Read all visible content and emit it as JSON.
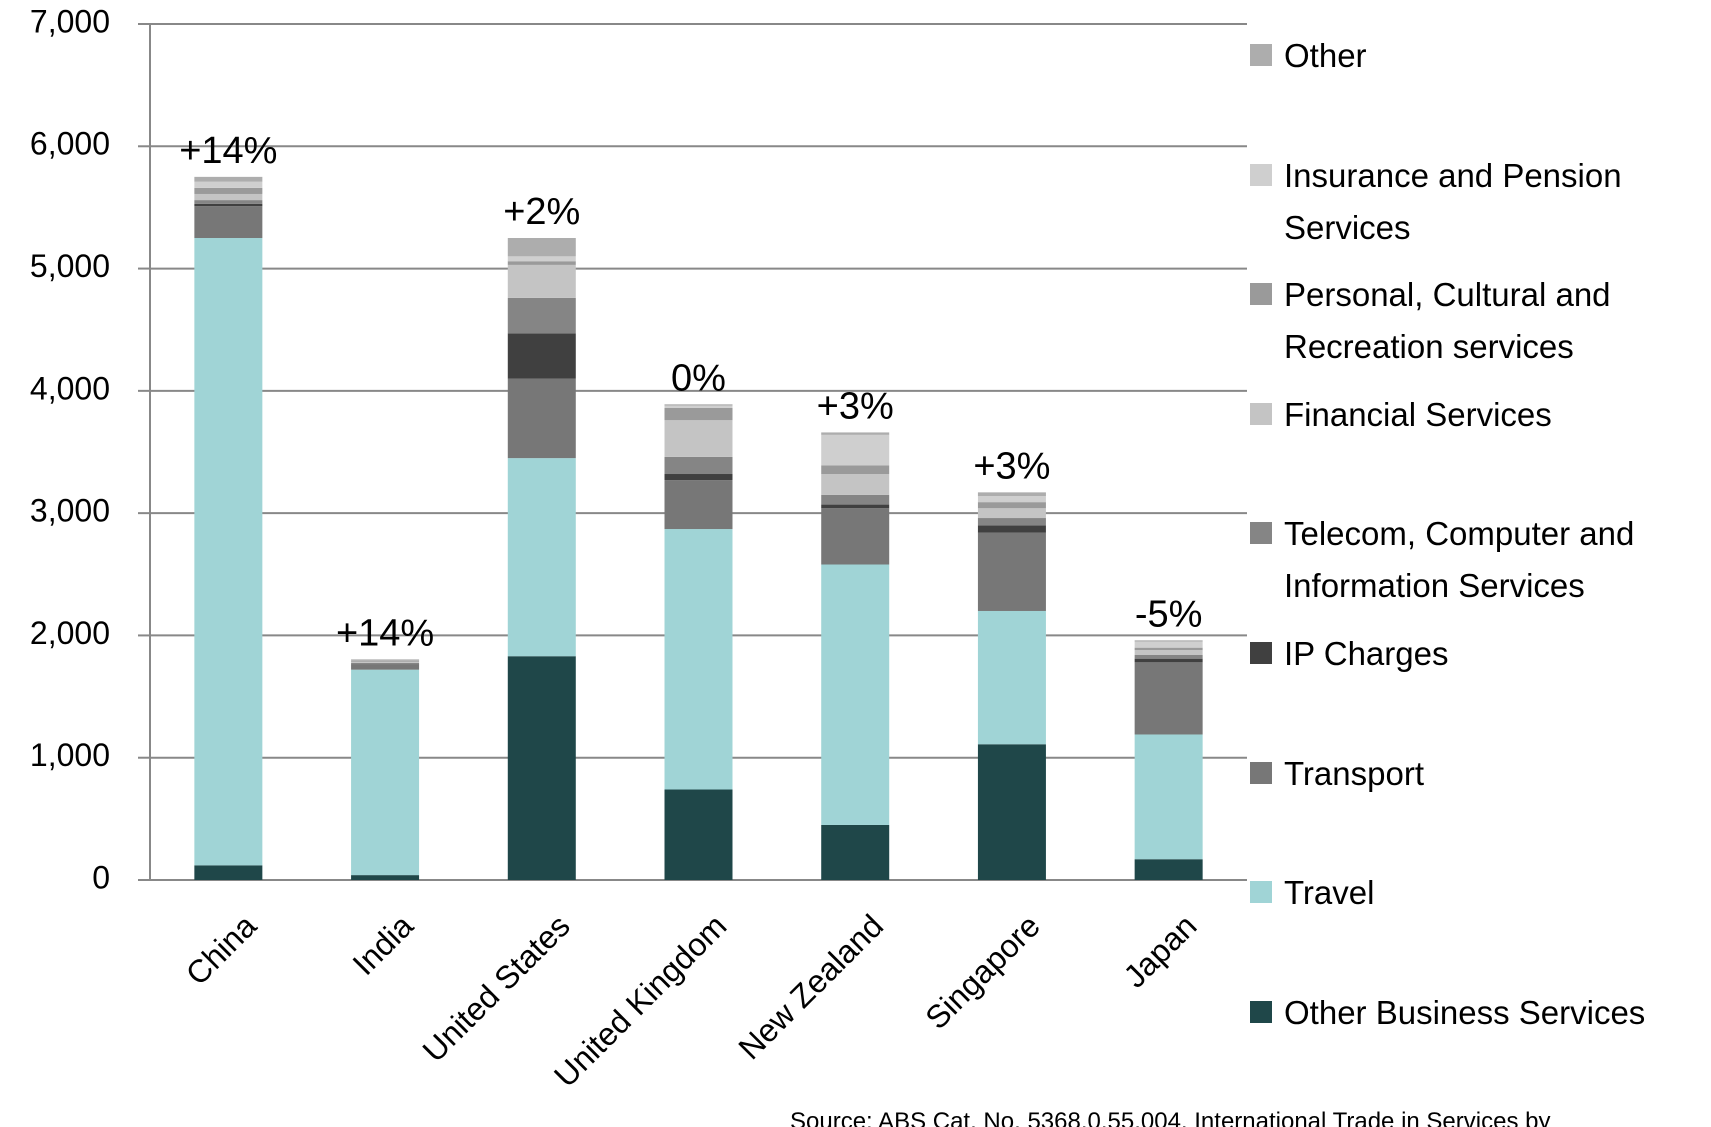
{
  "chart_data": {
    "type": "stacked_bar",
    "categories": [
      "China",
      "India",
      "United States",
      "United Kingdom",
      "New Zealand",
      "Singapore",
      "Japan"
    ],
    "growth_labels": [
      "+14%",
      "+14%",
      "+2%",
      "0%",
      "+3%",
      "+3%",
      "-5%"
    ],
    "ylim": [
      0,
      7000
    ],
    "yticks": [
      0,
      {
        "value": 1000,
        "label": "1,000"
      },
      {
        "value": 2000,
        "label": "2,000"
      },
      {
        "value": 3000,
        "label": "3,000"
      },
      {
        "value": 4000,
        "label": "4,000"
      },
      {
        "value": 5000,
        "label": "5,000"
      },
      {
        "value": 6000,
        "label": "6,000"
      },
      {
        "value": 7000,
        "label": "7,000"
      }
    ],
    "grid": true,
    "series": [
      {
        "name": "Other Business Services",
        "color": "#1f4749",
        "values": [
          120,
          40,
          1830,
          740,
          450,
          1110,
          170
        ]
      },
      {
        "name": "Travel",
        "color": "#a0d4d6",
        "values": [
          5130,
          1680,
          1620,
          2130,
          2130,
          1090,
          1020
        ]
      },
      {
        "name": "Transport",
        "color": "#777777",
        "values": [
          260,
          40,
          650,
          400,
          460,
          640,
          590
        ]
      },
      {
        "name": "IP Charges",
        "color": "#404040",
        "values": [
          20,
          5,
          370,
          50,
          30,
          60,
          30
        ]
      },
      {
        "name": "Telecom, Computer and Information Services",
        "color": "#858585",
        "values": [
          30,
          10,
          290,
          140,
          80,
          60,
          30
        ]
      },
      {
        "name": "Financial Services",
        "color": "#c4c4c4",
        "values": [
          50,
          10,
          270,
          300,
          170,
          80,
          40
        ]
      },
      {
        "name": "Personal, Cultural and Recreation services",
        "color": "#9a9a9a",
        "values": [
          50,
          10,
          30,
          100,
          70,
          50,
          20
        ]
      },
      {
        "name": "Insurance and Pension Services",
        "color": "#cfcfcf",
        "values": [
          50,
          5,
          40,
          20,
          250,
          50,
          50
        ]
      },
      {
        "name": "Other",
        "color": "#adadad",
        "values": [
          40,
          5,
          150,
          10,
          20,
          30,
          10
        ]
      }
    ],
    "source": "Source: ABS Cat. No. 5368.0.55.004, International Trade in Services by"
  }
}
